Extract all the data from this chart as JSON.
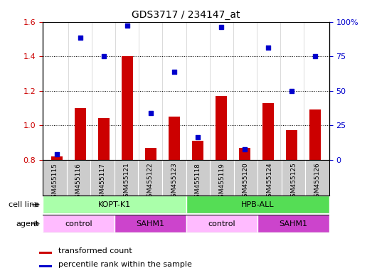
{
  "title": "GDS3717 / 234147_at",
  "samples": [
    "GSM455115",
    "GSM455116",
    "GSM455117",
    "GSM455121",
    "GSM455122",
    "GSM455123",
    "GSM455118",
    "GSM455119",
    "GSM455120",
    "GSM455124",
    "GSM455125",
    "GSM455126"
  ],
  "bar_values": [
    0.82,
    1.1,
    1.04,
    1.4,
    0.87,
    1.05,
    0.91,
    1.17,
    0.87,
    1.13,
    0.97,
    1.09
  ],
  "scatter_values": [
    0.83,
    1.51,
    1.4,
    1.58,
    1.07,
    1.31,
    0.93,
    1.57,
    0.86,
    1.45,
    1.2,
    1.4
  ],
  "bar_color": "#cc0000",
  "scatter_color": "#0000cc",
  "ylim_left": [
    0.8,
    1.6
  ],
  "ylim_right": [
    0,
    100
  ],
  "yticks_left": [
    0.8,
    1.0,
    1.2,
    1.4,
    1.6
  ],
  "yticks_right": [
    0,
    25,
    50,
    75,
    100
  ],
  "cell_line_groups": [
    {
      "text": "KOPT-K1",
      "start": 0,
      "end": 5,
      "color": "#aaffaa"
    },
    {
      "text": "HPB-ALL",
      "start": 6,
      "end": 11,
      "color": "#55dd55"
    }
  ],
  "agent_groups": [
    {
      "text": "control",
      "start": 0,
      "end": 2,
      "color": "#ffbbff"
    },
    {
      "text": "SAHM1",
      "start": 3,
      "end": 5,
      "color": "#cc44cc"
    },
    {
      "text": "control",
      "start": 6,
      "end": 8,
      "color": "#ffbbff"
    },
    {
      "text": "SAHM1",
      "start": 9,
      "end": 11,
      "color": "#cc44cc"
    }
  ],
  "cell_line_label": "cell line",
  "agent_label": "agent",
  "legend_bar_label": "transformed count",
  "legend_scatter_label": "percentile rank within the sample",
  "tick_area_color": "#cccccc",
  "right_tick_labels": [
    "0",
    "25",
    "50",
    "75",
    "100%"
  ]
}
